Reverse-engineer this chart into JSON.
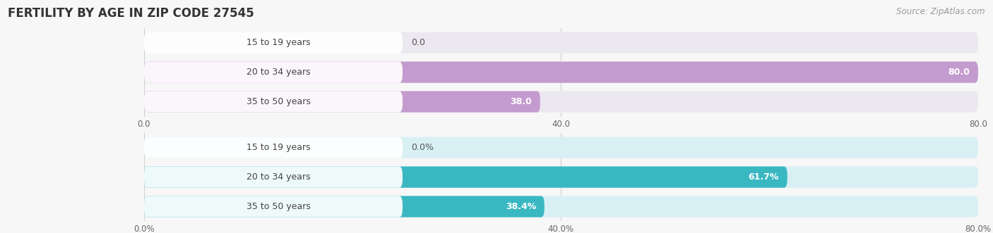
{
  "title": "FERTILITY BY AGE IN ZIP CODE 27545",
  "source": "Source: ZipAtlas.com",
  "chart1": {
    "categories": [
      "15 to 19 years",
      "20 to 34 years",
      "35 to 50 years"
    ],
    "values": [
      0.0,
      80.0,
      38.0
    ],
    "xlim": [
      0,
      80
    ],
    "xticks": [
      0.0,
      40.0,
      80.0
    ],
    "xtick_labels": [
      "0.0",
      "40.0",
      "80.0"
    ],
    "bar_color": "#c49bcf",
    "bg_color": "#ece8f0",
    "value_labels": [
      "0.0",
      "80.0",
      "38.0"
    ],
    "val_inside": [
      false,
      true,
      true
    ]
  },
  "chart2": {
    "categories": [
      "15 to 19 years",
      "20 to 34 years",
      "35 to 50 years"
    ],
    "values": [
      0.0,
      61.7,
      38.4
    ],
    "xlim": [
      0,
      80
    ],
    "xticks": [
      0.0,
      40.0,
      80.0
    ],
    "xtick_labels": [
      "0.0%",
      "40.0%",
      "80.0%"
    ],
    "bar_color": "#3ab8c2",
    "bg_color": "#d8f0f3",
    "value_labels": [
      "0.0%",
      "61.7%",
      "38.4%"
    ],
    "val_inside": [
      false,
      true,
      true
    ]
  },
  "bar_height": 0.72,
  "label_pill_color": "#ffffff",
  "title_fontsize": 12,
  "label_fontsize": 9,
  "value_fontsize": 9,
  "tick_fontsize": 8.5,
  "source_fontsize": 8.5,
  "fig_bg": "#f7f7f7",
  "grid_color": "#d0d0d0"
}
